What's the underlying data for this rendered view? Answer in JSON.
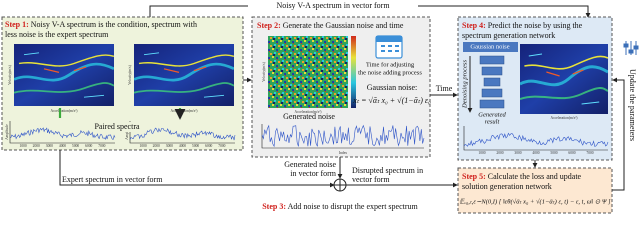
{
  "top_label": "Noisy V-A spectrum in vector form",
  "step1": {
    "tag": "Step 1:",
    "lines": [
      "Noisy V-A spectrum is the condition, spectrum with",
      "less noise is the expert spectrum"
    ],
    "y_label": "Velocity(m/s)",
    "x_label": "Acceleration(m/s²)",
    "signal_label": "Amplitude",
    "signal_ticks": [
      "1000",
      "2000",
      "3000",
      "4000",
      "5000",
      "6000",
      "7000"
    ],
    "paired": "Paired spectra"
  },
  "expert_label": "Expert spectrum in vector form",
  "step2": {
    "tag": "Step 2:",
    "title": "Generate the Gaussian noise and time",
    "time_lines": [
      "Time for adjusting",
      "the noise adding process"
    ],
    "noise_label": "Gaussian noise:",
    "formula": "xₜ = √ᾱₜ x₀ + √(1−ᾱₜ) ε₀",
    "generated": "Generated noise",
    "index_label": "Index",
    "y_label": "Velocity(m/s)",
    "x_label": "Acceleration(m/s²)"
  },
  "time_label": "Time",
  "noise_vector": [
    "Generated noise",
    "in vector form"
  ],
  "disrupted": [
    "Disrupted spectrum in",
    "vector form"
  ],
  "step3": {
    "tag": "Step 3:",
    "text": "Add noise to disrupt the expert spectrum"
  },
  "step4": {
    "tag": "Step 4:",
    "lines": [
      "Predict the noise by using the",
      "spectrum generation network"
    ],
    "gaussian": "Gaussian noise",
    "denoising": "Denoising process",
    "result": [
      "Generated",
      "result"
    ],
    "x_label": "Acceleration(m/s²)"
  },
  "step5": {
    "tag": "Step 5:",
    "lines": [
      "Calculate the loss and update",
      "solution generation network"
    ],
    "formula": "𝔼ₓ₀,ₜ,ε∼N(0,I) [ ‖εθ(√ᾱₜ x₀ + √(1−ᾱₜ) ε, t) − ε, t, ω‖ ⊙ Ψ ]"
  },
  "update": "Update the parameters"
}
